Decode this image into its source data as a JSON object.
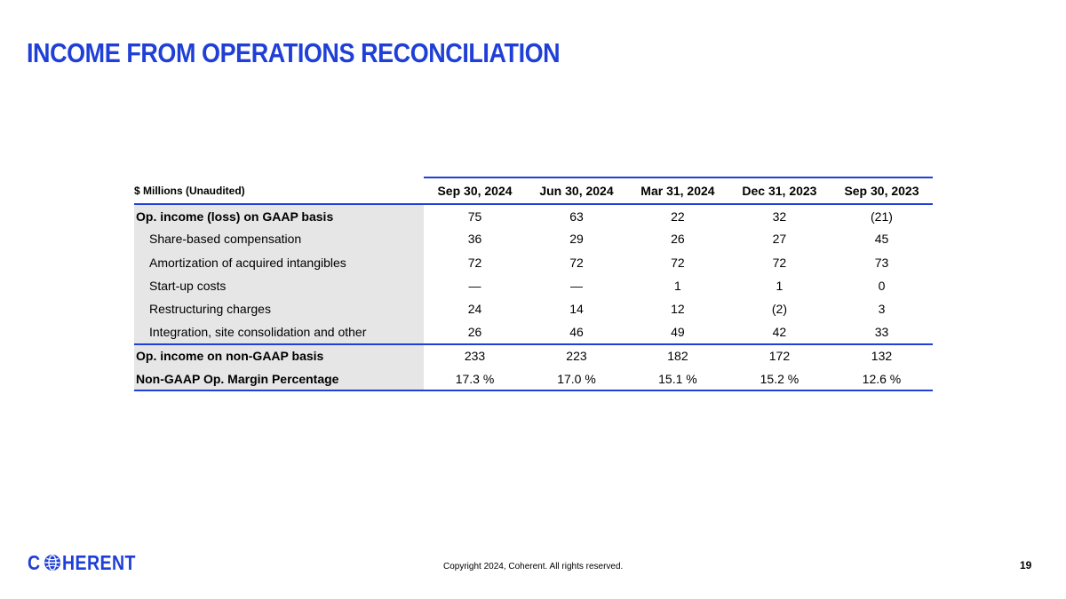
{
  "slide": {
    "title": "INCOME FROM OPERATIONS RECONCILIATION",
    "accent_color": "#1f3fd6",
    "label_background": "#e6e6e6"
  },
  "table": {
    "unit_label": "$ Millions (Unaudited)",
    "periods": [
      "Sep 30, 2024",
      "Jun 30, 2024",
      "Mar 31, 2024",
      "Dec 31, 2023",
      "Sep 30, 2023"
    ],
    "rows": [
      {
        "label": "Op. income (loss) on GAAP basis",
        "values": [
          "75",
          "63",
          "22",
          "32",
          "(21)"
        ]
      },
      {
        "label": "Share-based compensation",
        "values": [
          "36",
          "29",
          "26",
          "27",
          "45"
        ]
      },
      {
        "label": "Amortization of acquired intangibles",
        "values": [
          "72",
          "72",
          "72",
          "72",
          "73"
        ]
      },
      {
        "label": "Start-up costs",
        "values": [
          "—",
          "—",
          "1",
          "1",
          "0"
        ]
      },
      {
        "label": "Restructuring charges",
        "values": [
          "24",
          "14",
          "12",
          "(2)",
          "3"
        ]
      },
      {
        "label": "Integration, site consolidation and other",
        "values": [
          "26",
          "46",
          "49",
          "42",
          "33"
        ]
      },
      {
        "label": "Op. income on non-GAAP basis",
        "values": [
          "233",
          "223",
          "182",
          "172",
          "132"
        ]
      },
      {
        "label": "Non-GAAP Op. Margin Percentage",
        "values": [
          "17.3 %",
          "17.0 %",
          "15.1 %",
          "15.2 %",
          "12.6 %"
        ]
      }
    ]
  },
  "footer": {
    "logo_left": "C",
    "logo_icon": "globe-icon",
    "logo_right": "HERENT",
    "copyright": "Copyright 2024, Coherent. All rights reserved.",
    "page_number": "19"
  }
}
